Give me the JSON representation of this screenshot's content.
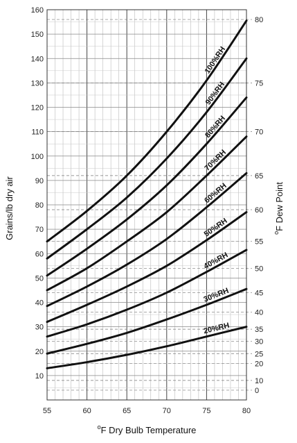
{
  "chart_data": {
    "type": "line",
    "xlabel": "°F Dry Bulb Temperature",
    "xlabel_sup": "o",
    "xlabel_main": "F Dry Bulb Temperature",
    "ylabel_left": "Grains/lb dry air",
    "ylabel_right": "°F Dew Point",
    "ylabel_right_sup": "o",
    "ylabel_right_main": "F Dew Point",
    "xlim": [
      55,
      80
    ],
    "ylim": [
      0,
      160
    ],
    "x_ticks": [
      55,
      60,
      65,
      70,
      75,
      80
    ],
    "y_ticks_left": [
      10,
      20,
      30,
      40,
      50,
      60,
      70,
      80,
      90,
      100,
      110,
      120,
      130,
      140,
      150,
      160
    ],
    "right_axis_ticks": [
      {
        "label": "0",
        "grains": 4
      },
      {
        "label": "10",
        "grains": 8
      },
      {
        "label": "20",
        "grains": 15
      },
      {
        "label": "25",
        "grains": 19
      },
      {
        "label": "30",
        "grains": 24
      },
      {
        "label": "35",
        "grains": 29
      },
      {
        "label": "40",
        "grains": 36
      },
      {
        "label": "45",
        "grains": 44
      },
      {
        "label": "50",
        "grains": 54
      },
      {
        "label": "55",
        "grains": 65
      },
      {
        "label": "60",
        "grains": 78
      },
      {
        "label": "65",
        "grains": 92
      },
      {
        "label": "70",
        "grains": 110
      },
      {
        "label": "75",
        "grains": 130
      },
      {
        "label": "80",
        "grains": 156
      }
    ],
    "grid": true,
    "series": [
      {
        "name": "100%RH",
        "x": [
          55,
          60,
          65,
          70,
          75,
          80
        ],
        "y": [
          65,
          77.5,
          92,
          110,
          131,
          155.5
        ]
      },
      {
        "name": "90%RH",
        "x": [
          55,
          60,
          65,
          70,
          75,
          80
        ],
        "y": [
          58,
          70,
          83,
          99,
          118,
          140
        ]
      },
      {
        "name": "80%RH",
        "x": [
          55,
          60,
          65,
          70,
          75,
          80
        ],
        "y": [
          51,
          62,
          74,
          88,
          105,
          124
        ]
      },
      {
        "name": "70%RH",
        "x": [
          55,
          60,
          65,
          70,
          75,
          80
        ],
        "y": [
          45,
          54,
          65,
          77,
          92,
          108
        ]
      },
      {
        "name": "60%RH",
        "x": [
          55,
          60,
          65,
          70,
          75,
          80
        ],
        "y": [
          38.5,
          46.5,
          55.5,
          66,
          79,
          93
        ]
      },
      {
        "name": "50%RH",
        "x": [
          55,
          60,
          65,
          70,
          75,
          80
        ],
        "y": [
          32,
          39,
          46.5,
          55,
          65.5,
          77
        ]
      },
      {
        "name": "40%RH",
        "x": [
          55,
          60,
          65,
          70,
          75,
          80
        ],
        "y": [
          26,
          31,
          37,
          44,
          52.5,
          61.5
        ]
      },
      {
        "name": "30%RH",
        "x": [
          55,
          60,
          65,
          70,
          75,
          80
        ],
        "y": [
          19,
          23,
          27.5,
          33,
          39,
          45.5
        ]
      },
      {
        "name": "20%RH",
        "x": [
          55,
          60,
          65,
          70,
          75,
          80
        ],
        "y": [
          13,
          15.5,
          18.5,
          22,
          26,
          30
        ]
      }
    ]
  }
}
